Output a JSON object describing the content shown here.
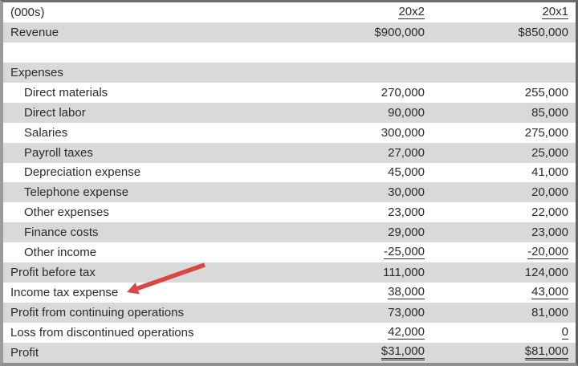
{
  "colors": {
    "row_shade": "#d9d9d9",
    "text": "#2b2b2b",
    "underline": "#2b2b2b",
    "arrow": "#d84743"
  },
  "table": {
    "unit_label": "(000s)",
    "columns": [
      "20x2",
      "20x1"
    ],
    "rows": [
      {
        "label": "Revenue",
        "col1": "$900,000",
        "col2": "$850,000",
        "indent": false,
        "shaded": true,
        "underline": "none"
      },
      {
        "label": "",
        "col1": "",
        "col2": "",
        "indent": false,
        "shaded": false,
        "underline": "none"
      },
      {
        "label": "Expenses",
        "col1": "",
        "col2": "",
        "indent": false,
        "shaded": true,
        "underline": "none"
      },
      {
        "label": "Direct materials",
        "col1": "270,000",
        "col2": "255,000",
        "indent": true,
        "shaded": false,
        "underline": "none"
      },
      {
        "label": "Direct labor",
        "col1": "90,000",
        "col2": "85,000",
        "indent": true,
        "shaded": true,
        "underline": "none"
      },
      {
        "label": "Salaries",
        "col1": "300,000",
        "col2": "275,000",
        "indent": true,
        "shaded": false,
        "underline": "none"
      },
      {
        "label": "Payroll taxes",
        "col1": "27,000",
        "col2": "25,000",
        "indent": true,
        "shaded": true,
        "underline": "none"
      },
      {
        "label": "Depreciation expense",
        "col1": "45,000",
        "col2": "41,000",
        "indent": true,
        "shaded": false,
        "underline": "none"
      },
      {
        "label": "Telephone expense",
        "col1": "30,000",
        "col2": "20,000",
        "indent": true,
        "shaded": true,
        "underline": "none"
      },
      {
        "label": "Other expenses",
        "col1": "23,000",
        "col2": "22,000",
        "indent": true,
        "shaded": false,
        "underline": "none"
      },
      {
        "label": "Finance costs",
        "col1": "29,000",
        "col2": "23,000",
        "indent": true,
        "shaded": true,
        "underline": "none"
      },
      {
        "label": "Other income",
        "col1": "-25,000",
        "col2": "-20,000",
        "indent": true,
        "shaded": false,
        "underline": "single"
      },
      {
        "label": "Profit before tax",
        "col1": "111,000",
        "col2": "124,000",
        "indent": false,
        "shaded": true,
        "underline": "none"
      },
      {
        "label": "Income tax expense",
        "col1": "38,000",
        "col2": "43,000",
        "indent": false,
        "shaded": false,
        "underline": "single"
      },
      {
        "label": "Profit from continuing operations",
        "col1": "73,000",
        "col2": "81,000",
        "indent": false,
        "shaded": true,
        "underline": "none"
      },
      {
        "label": "Loss from discontinued operations",
        "col1": "42,000",
        "col2": "0",
        "indent": false,
        "shaded": false,
        "underline": "single"
      },
      {
        "label": "Profit",
        "col1": "$31,000",
        "col2": "$81,000",
        "indent": false,
        "shaded": true,
        "underline": "double"
      }
    ]
  }
}
